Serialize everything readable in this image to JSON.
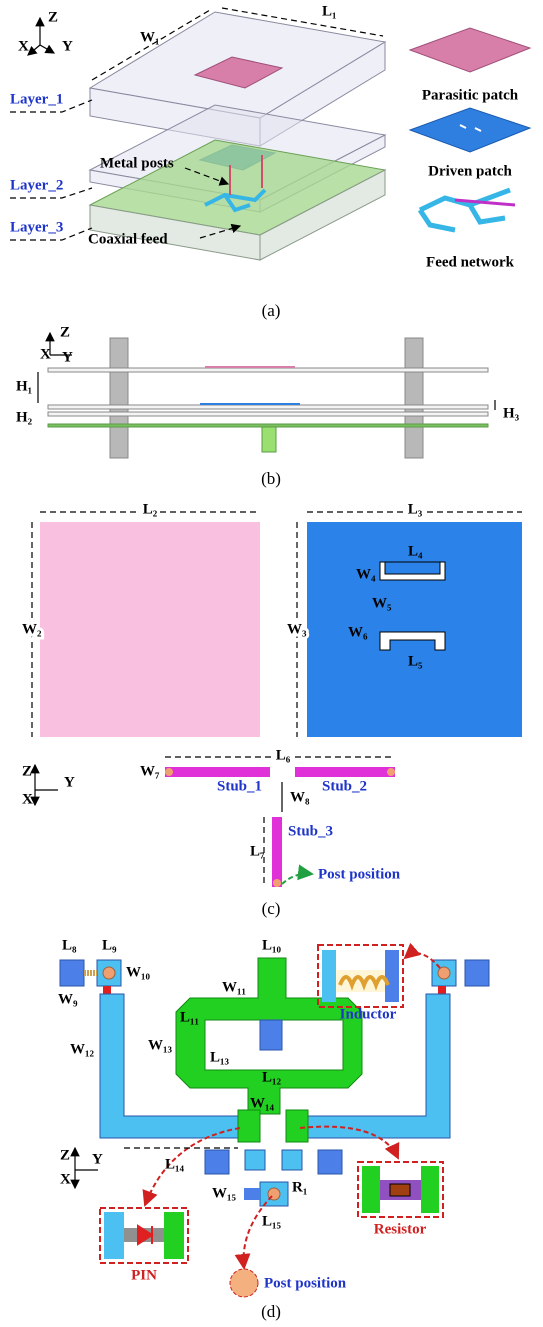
{
  "panel_a": {
    "axes": {
      "z": "Z",
      "x": "X",
      "y": "Y"
    },
    "dims": {
      "w1": "W₁",
      "l1": "L₁"
    },
    "layers": [
      "Layer_1",
      "Layer_2",
      "Layer_3"
    ],
    "callouts": [
      "Metal posts",
      "Coaxial feed"
    ],
    "legend": [
      "Parasitic patch",
      "Driven patch",
      "Feed network"
    ],
    "caption": "(a)"
  },
  "panel_b": {
    "axes": {
      "z": "Z",
      "x": "X",
      "y": "Y"
    },
    "dims": {
      "h1": "H₁",
      "h2": "H₂",
      "h3": "H₃"
    },
    "caption": "(b)"
  },
  "panel_c": {
    "dims": {
      "l2": "L₂",
      "w2": "W₂",
      "l3": "L₃",
      "w3": "W₃",
      "l4": "L₄",
      "w4": "W₄",
      "w5": "W₅",
      "w6": "W₆",
      "l5": "L₅",
      "w7": "W₇",
      "l6": "L₆",
      "w8": "W₈",
      "l7": "L₇"
    },
    "axes": {
      "z": "Z",
      "y": "Y",
      "x": "X"
    },
    "stubs": [
      "Stub_1",
      "Stub_2",
      "Stub_3"
    ],
    "post_position": "Post position",
    "caption": "(c)"
  },
  "panel_d": {
    "dims": {
      "l8": "L₈",
      "l9": "L₉",
      "w10": "W₁₀",
      "w9": "W₉",
      "l10": "L₁₀",
      "w11": "W₁₁",
      "l11": "L₁₁",
      "w12": "W₁₂",
      "w13": "W₁₃",
      "l13": "L₁₃",
      "l12": "L₁₂",
      "w14": "W₁₄",
      "l14": "L₁₄",
      "w15": "W₁₅",
      "r1": "R₁",
      "l15": "L₁₅"
    },
    "axes": {
      "z": "Z",
      "x": "X",
      "y": "Y"
    },
    "components": {
      "inductor": "Inductor",
      "pin": "PIN",
      "resistor": "Resistor"
    },
    "post_position": "Post position",
    "caption": "(d)"
  }
}
